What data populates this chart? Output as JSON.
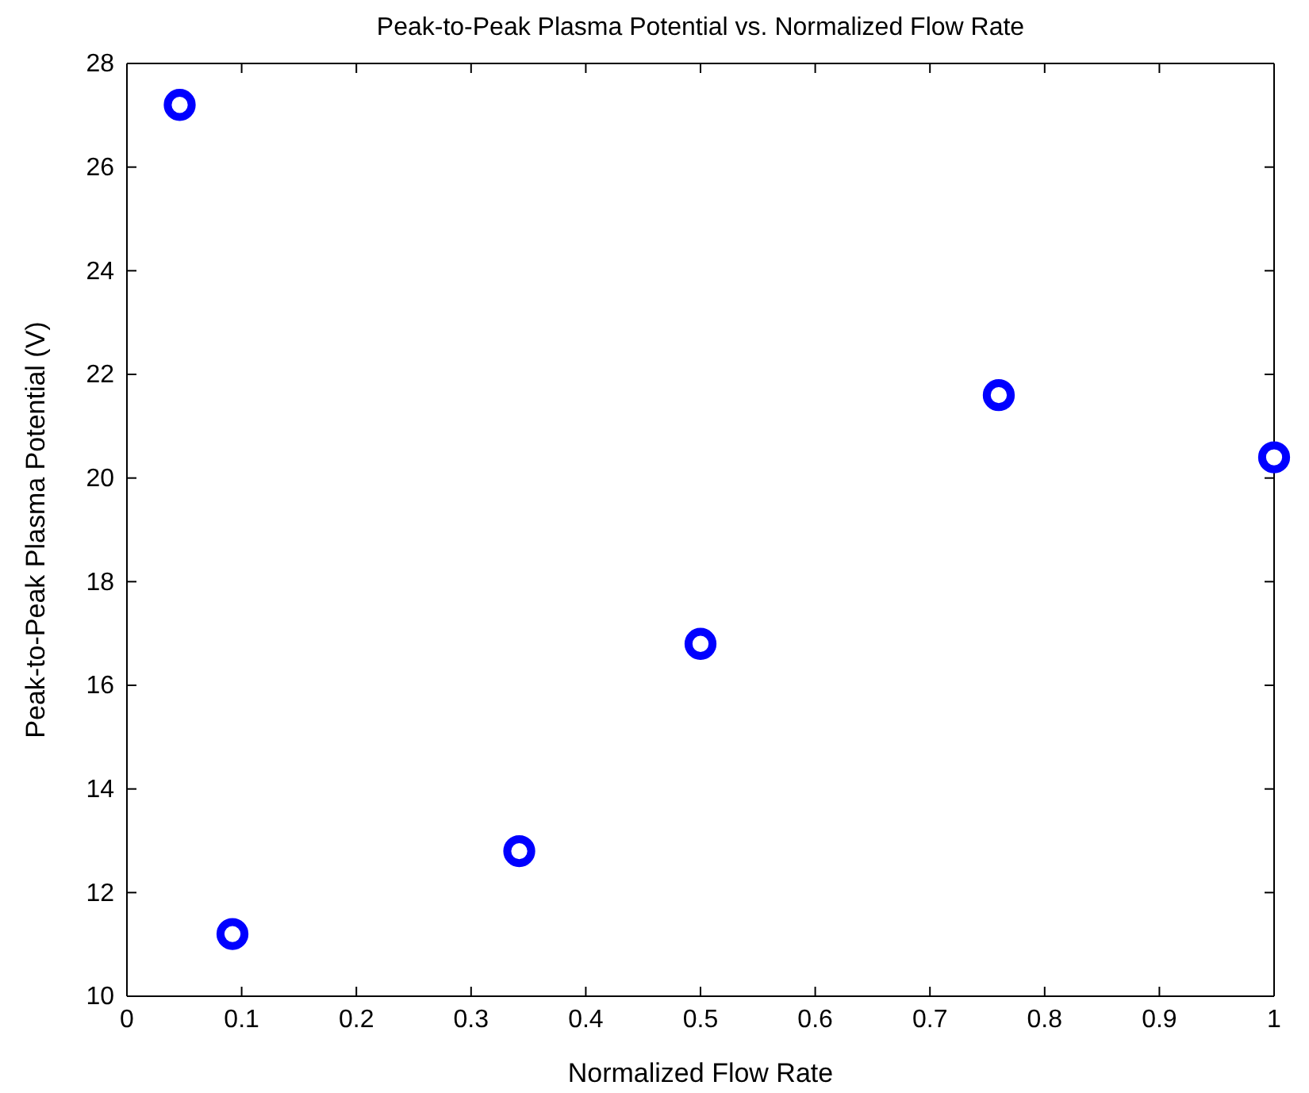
{
  "chart_data": {
    "type": "scatter",
    "title": "Peak-to-Peak Plasma Potential vs. Normalized Flow Rate",
    "xlabel": "Normalized Flow Rate",
    "ylabel": "Peak-to-Peak Plasma Potential (V)",
    "x": [
      0.046,
      0.092,
      0.342,
      0.5,
      0.76,
      1.0
    ],
    "series": [
      {
        "color": "#0000ff",
        "values": [
          27.2,
          11.2,
          12.8,
          16.8,
          21.6,
          20.4
        ]
      }
    ],
    "xlim": [
      0,
      1
    ],
    "xticks": [
      0,
      0.1,
      0.2,
      0.3,
      0.4,
      0.5,
      0.6,
      0.7,
      0.8,
      0.9,
      1
    ],
    "ylim": [
      10,
      28
    ],
    "yticks": [
      10,
      12,
      14,
      16,
      18,
      20,
      22,
      24,
      26,
      28
    ],
    "grid": false,
    "marker": "circle"
  }
}
